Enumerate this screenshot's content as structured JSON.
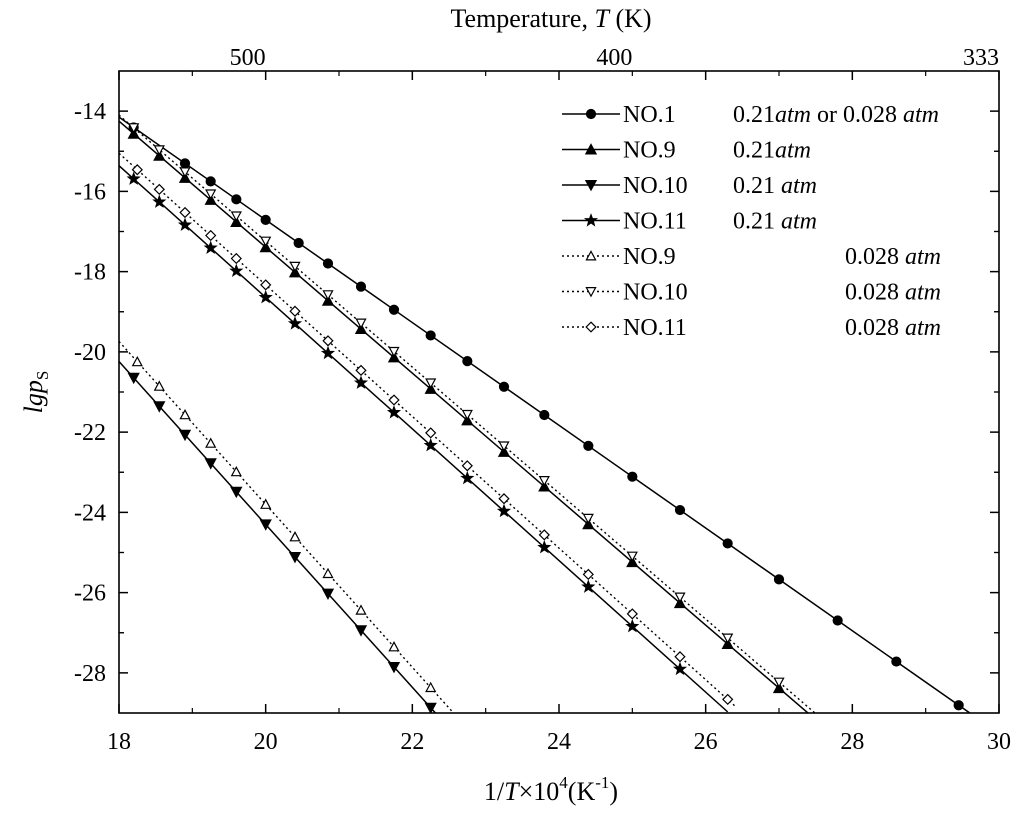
{
  "chart_data": {
    "type": "line",
    "xlabel": {
      "prefix": "1/",
      "var": "T",
      "mid": "×10",
      "exp": "4",
      "unit_open": "(K",
      "unit_exp": "-1",
      "unit_close": ")"
    },
    "ylabel": {
      "var": "lgp",
      "sub": "S"
    },
    "top_axis_label": {
      "prefix": "Temperature, ",
      "var": "T",
      "suffix": " (K)"
    },
    "xlim": [
      18,
      30
    ],
    "ylim": [
      -29,
      -13
    ],
    "x_ticks": [
      18,
      20,
      22,
      24,
      26,
      28,
      30
    ],
    "x_tick_labels": [
      "18",
      "20",
      "22",
      "24",
      "26",
      "28",
      "30"
    ],
    "y_ticks": [
      -14,
      -16,
      -18,
      -20,
      -22,
      -24,
      -26,
      -28
    ],
    "y_tick_labels": [
      "-14",
      "-16",
      "-18",
      "-20",
      "-22",
      "-24",
      "-26",
      "-28"
    ],
    "top_ticks": [
      {
        "x": 20.0,
        "label": "500"
      },
      {
        "x": 25.0,
        "label": "400"
      },
      {
        "x": 30.0,
        "label": "333"
      }
    ],
    "grid": false,
    "legend_position": "top-right",
    "series": [
      {
        "name": "NO.1",
        "condition": "0.21atm or 0.028 atm",
        "cond_parts": [
          [
            "0.21",
            false
          ],
          [
            "atm",
            true
          ],
          [
            " or 0.028 ",
            false
          ],
          [
            "atm",
            true
          ]
        ],
        "cond_col": 0,
        "marker": "circle-filled",
        "style": "solid",
        "slope": -1.28,
        "intercept": 8.89,
        "x_start": 18.0,
        "x_end": 29.6,
        "markers": [
          18.2,
          18.9,
          19.25,
          19.6,
          20.0,
          20.45,
          20.85,
          21.3,
          21.75,
          22.25,
          22.75,
          23.25,
          23.8,
          24.4,
          25.0,
          25.65,
          26.3,
          27.0,
          27.8,
          28.6,
          29.45
        ]
      },
      {
        "name": "NO.9",
        "condition": "0.21atm",
        "cond_parts": [
          [
            "0.21",
            false
          ],
          [
            "atm",
            true
          ]
        ],
        "cond_col": 0,
        "marker": "triangle-up-filled",
        "style": "solid",
        "slope": -1.57,
        "intercept": 14.01,
        "x_start": 18.0,
        "x_end": 27.4,
        "markers": [
          18.2,
          18.55,
          18.9,
          19.25,
          19.6,
          20.0,
          20.4,
          20.85,
          21.3,
          21.75,
          22.25,
          22.75,
          23.25,
          23.8,
          24.4,
          25.0,
          25.65,
          26.3,
          27.0
        ]
      },
      {
        "name": "NO.10",
        "condition": "0.21 atm",
        "cond_parts": [
          [
            "0.21 ",
            false
          ],
          [
            "atm",
            true
          ]
        ],
        "cond_col": 0,
        "marker": "triangle-down-filled",
        "style": "solid",
        "slope": -2.03,
        "intercept": 16.3,
        "x_start": 18.0,
        "x_end": 22.35,
        "markers": [
          18.2,
          18.55,
          18.9,
          19.25,
          19.6,
          20.0,
          20.4,
          20.85,
          21.3,
          21.75,
          22.25
        ]
      },
      {
        "name": "NO.11",
        "condition": "0.21 atm",
        "cond_parts": [
          [
            "0.21 ",
            false
          ],
          [
            "atm",
            true
          ]
        ],
        "cond_col": 0,
        "marker": "star-filled",
        "style": "solid",
        "slope": -1.64,
        "intercept": 14.16,
        "x_start": 18.0,
        "x_end": 26.3,
        "markers": [
          18.2,
          18.55,
          18.9,
          19.25,
          19.6,
          20.0,
          20.4,
          20.85,
          21.3,
          21.75,
          22.25,
          22.75,
          23.25,
          23.8,
          24.4,
          25.0,
          25.65
        ]
      },
      {
        "name": "NO.9",
        "condition": "0.028 atm",
        "cond_parts": [
          [
            "0.028 ",
            false
          ],
          [
            "atm",
            true
          ]
        ],
        "cond_col": 1,
        "marker": "triangle-up-open",
        "style": "dotted",
        "slope": -2.03,
        "intercept": 16.8,
        "x_start": 18.0,
        "x_end": 22.6,
        "markers": [
          18.25,
          18.55,
          18.9,
          19.25,
          19.6,
          20.0,
          20.4,
          20.85,
          21.3,
          21.75,
          22.25
        ]
      },
      {
        "name": "NO.10",
        "condition": "0.028 atm",
        "cond_parts": [
          [
            "0.028 ",
            false
          ],
          [
            "atm",
            true
          ]
        ],
        "cond_col": 1,
        "marker": "triangle-down-open",
        "style": "dotted",
        "slope": -1.57,
        "intercept": 14.16,
        "x_start": 18.0,
        "x_end": 27.55,
        "markers": [
          18.2,
          18.55,
          18.9,
          19.25,
          19.6,
          20.0,
          20.4,
          20.85,
          21.3,
          21.75,
          22.25,
          22.75,
          23.25,
          23.8,
          24.4,
          25.0,
          25.65,
          26.3,
          27.0
        ]
      },
      {
        "name": "NO.11",
        "condition": "0.028 atm",
        "cond_parts": [
          [
            "0.028 ",
            false
          ],
          [
            "atm",
            true
          ]
        ],
        "cond_col": 1,
        "marker": "diamond-open",
        "style": "dotted",
        "slope": -1.64,
        "intercept": 14.47,
        "x_start": 18.0,
        "x_end": 26.4,
        "markers": [
          18.25,
          18.55,
          18.9,
          19.25,
          19.6,
          20.0,
          20.4,
          20.85,
          21.3,
          21.75,
          22.25,
          22.75,
          23.25,
          23.8,
          24.4,
          25.0,
          25.65,
          26.3
        ]
      }
    ]
  }
}
